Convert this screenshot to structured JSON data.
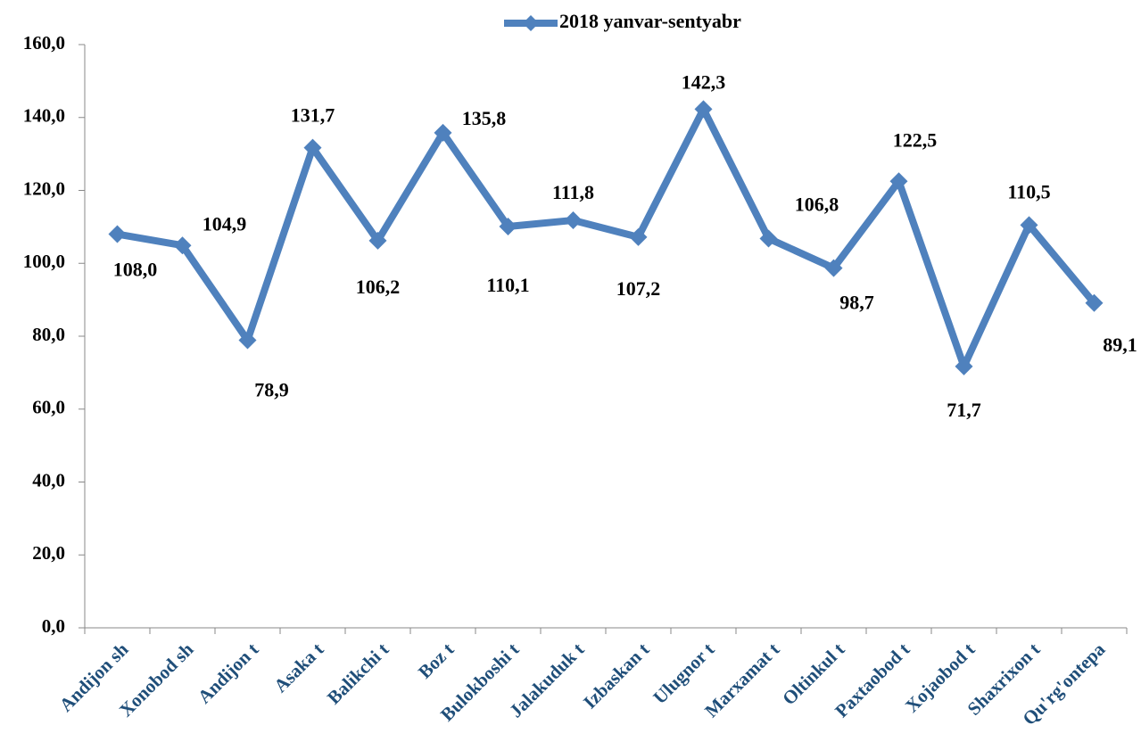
{
  "chart_data": {
    "type": "line",
    "categories": [
      "Andijon sh",
      "Xonobod sh",
      "Andijon t",
      "Asaka t",
      "Balikchi t",
      "Boz t",
      "Bulokboshi t",
      "Jalakuduk t",
      "Izbaskan t",
      "Ulugnor t",
      "Marxamat t",
      "Oltinkul t",
      "Paxtaobod t",
      "Xojaobod t",
      "Shaxrixon t",
      "Qu'rg'ontepa"
    ],
    "series": [
      {
        "name": "2018 yanvar-sentyabr",
        "color": "#4f81bd",
        "values": [
          108.0,
          104.9,
          78.9,
          131.7,
          106.2,
          135.8,
          110.1,
          111.8,
          107.2,
          142.3,
          106.8,
          98.7,
          122.5,
          71.7,
          110.5,
          89.1
        ],
        "value_labels": [
          "108,0",
          "104,9",
          "78,9",
          "131,7",
          "106,2",
          "135,8",
          "110,1",
          "111,8",
          "107,2",
          "142,3",
          "106,8",
          "98,7",
          "122,5",
          "71,7",
          "110,5",
          "89,1"
        ]
      }
    ],
    "ylim": [
      0,
      160
    ],
    "yticks": [
      {
        "value": 0,
        "label": "0,0"
      },
      {
        "value": 20,
        "label": "20,0"
      },
      {
        "value": 40,
        "label": "40,0"
      },
      {
        "value": 60,
        "label": "60,0"
      },
      {
        "value": 80,
        "label": "80,0"
      },
      {
        "value": 100,
        "label": "100,0"
      },
      {
        "value": 120,
        "label": "120,0"
      },
      {
        "value": 140,
        "label": "140,0"
      },
      {
        "value": 160,
        "label": "160,0"
      }
    ],
    "grid": false,
    "legend": "top"
  }
}
